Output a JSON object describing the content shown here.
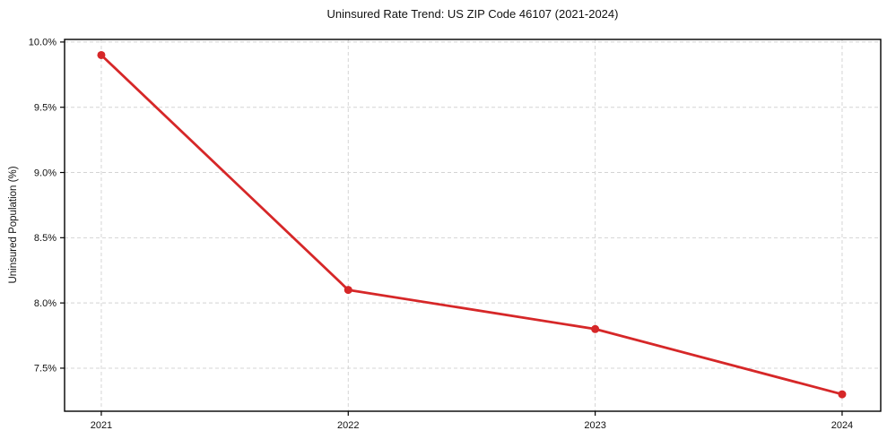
{
  "chart_data": {
    "type": "line",
    "title": "Uninsured Rate Trend: US ZIP Code 46107 (2021-2024)",
    "xlabel": "",
    "ylabel": "Uninsured Population (%)",
    "categories": [
      "2021",
      "2022",
      "2023",
      "2024"
    ],
    "series": [
      {
        "name": "uninsured-rate",
        "values": [
          9.9,
          8.1,
          7.8,
          7.3
        ]
      }
    ],
    "yticks": [
      10.0,
      9.5,
      9.0,
      8.5,
      8.0,
      7.5
    ],
    "ytick_labels": [
      "10.0%",
      "9.5%",
      "9.0%",
      "8.5%",
      "8.0%",
      "7.5%"
    ],
    "ylim": [
      7.17,
      10.02
    ],
    "grid": true,
    "grid_style": "dashed",
    "legend": "none",
    "colors": {
      "line": "#d62728",
      "grid": "#d4d4d4",
      "spine": "#000000",
      "text": "#111111",
      "background": "#ffffff"
    },
    "marker": "circle"
  }
}
